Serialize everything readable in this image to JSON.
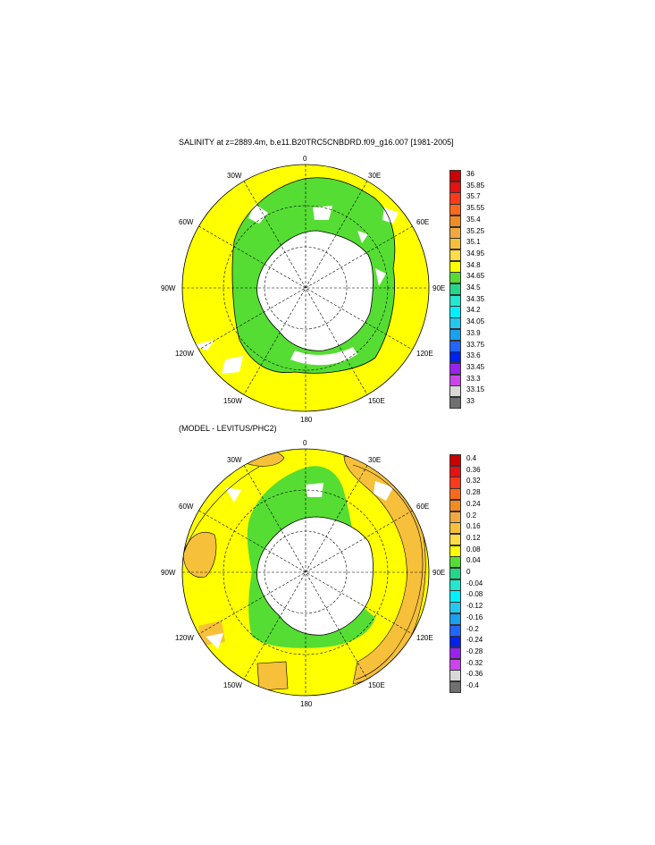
{
  "panels": [
    {
      "title": "SALINITY at z=2889.4m, b.e11.B20TRC5CNBDRD.f09_g16.007 [1981-2005]",
      "lon_labels": [
        "0",
        "30E",
        "60E",
        "90E",
        "120E",
        "150E",
        "180",
        "150W",
        "120W",
        "90W",
        "60W",
        "30W"
      ],
      "colorbar": {
        "levels": [
          "36",
          "35.85",
          "35.7",
          "35.55",
          "35.4",
          "35.25",
          "35.1",
          "34.95",
          "34.8",
          "34.65",
          "34.5",
          "34.35",
          "34.2",
          "34.05",
          "33.9",
          "33.75",
          "33.6",
          "33.45",
          "33.3",
          "33.15",
          "33"
        ],
        "colors": [
          "#cc0000",
          "#e81010",
          "#ff3a1a",
          "#ff6a1a",
          "#f08c20",
          "#f2a840",
          "#f7c03a",
          "#ffdd44",
          "#ffff00",
          "#55dd33",
          "#22d888",
          "#22e8d0",
          "#00f0ff",
          "#22c8f0",
          "#1aa0f0",
          "#2266ff",
          "#0022ee",
          "#9922ee",
          "#cc44ee",
          "#d8d8d8",
          "#707070"
        ]
      },
      "field_colors": {
        "ocean": "#ffff00",
        "deep": "#55dd33",
        "land": "#ffffff"
      }
    },
    {
      "title": "(MODEL - LEVITUS/PHC2)",
      "lon_labels": [
        "0",
        "30E",
        "60E",
        "90E",
        "120E",
        "150E",
        "180",
        "150W",
        "120W",
        "90W",
        "60W",
        "30W"
      ],
      "colorbar": {
        "levels": [
          "0.4",
          "0.36",
          "0.32",
          "0.28",
          "0.24",
          "0.2",
          "0.16",
          "0.12",
          "0.08",
          "0.04",
          "0",
          "-0.04",
          "-0.08",
          "-0.12",
          "-0.16",
          "-0.2",
          "-0.24",
          "-0.28",
          "-0.32",
          "-0.36",
          "-0.4"
        ],
        "colors": [
          "#cc0000",
          "#e81010",
          "#ff3a1a",
          "#ff6a1a",
          "#f08c20",
          "#f2a840",
          "#f7c03a",
          "#ffdd44",
          "#ffff00",
          "#55dd33",
          "#22d888",
          "#22e8d0",
          "#00f0ff",
          "#22c8f0",
          "#1aa0f0",
          "#2266ff",
          "#0022ee",
          "#9922ee",
          "#cc44ee",
          "#d8d8d8",
          "#707070"
        ]
      },
      "field_colors": {
        "ocean": "#ffff00",
        "deep": "#55dd33",
        "warm": "#f7c03a",
        "land": "#ffffff"
      }
    }
  ]
}
